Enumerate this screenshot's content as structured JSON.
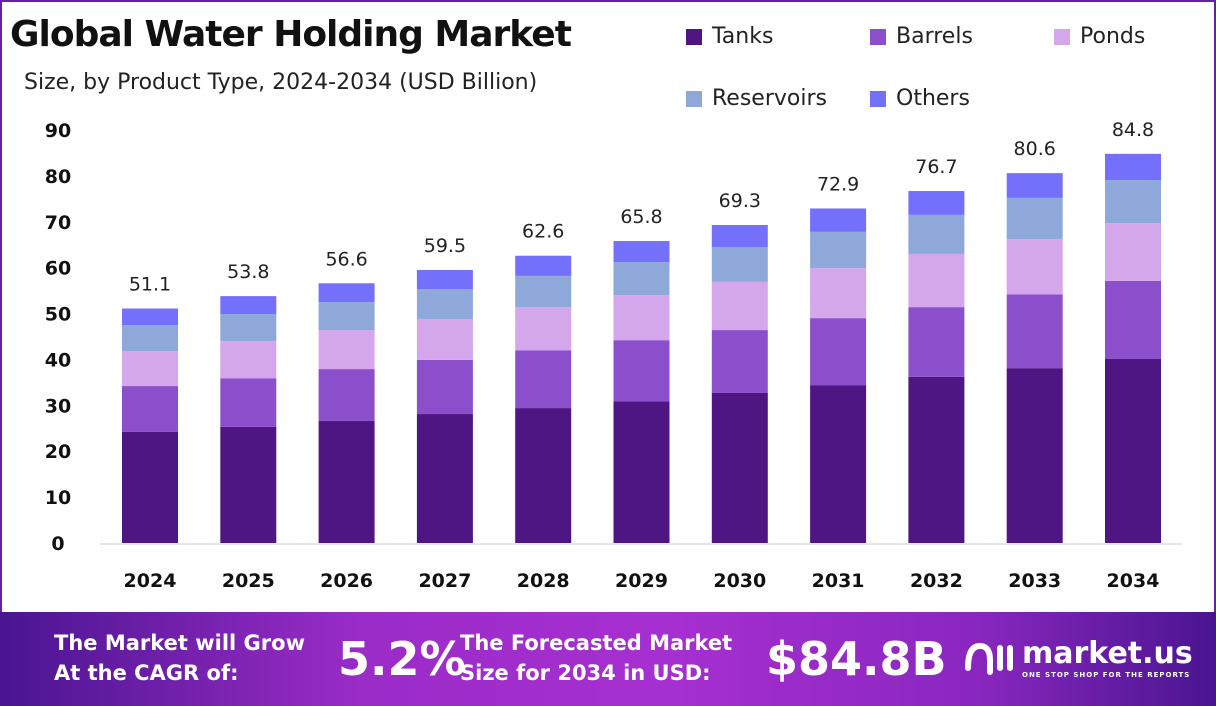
{
  "chart_data": {
    "type": "bar",
    "stacked": true,
    "title": "Global Water Holding Market",
    "subtitle": "Size, by Product Type, 2024-2034 (USD Billion)",
    "categories": [
      "2024",
      "2025",
      "2026",
      "2027",
      "2028",
      "2029",
      "2030",
      "2031",
      "2032",
      "2033",
      "2034"
    ],
    "series": [
      {
        "name": "Tanks",
        "color": "#4e1683",
        "values": [
          24.2,
          25.3,
          26.6,
          28.1,
          29.4,
          30.9,
          32.7,
          34.4,
          36.2,
          38.1,
          40.1
        ]
      },
      {
        "name": "Barrels",
        "color": "#8b4fcc",
        "values": [
          10.0,
          10.6,
          11.3,
          11.8,
          12.6,
          13.3,
          13.7,
          14.6,
          15.2,
          16.1,
          17.0
        ]
      },
      {
        "name": "Ponds",
        "color": "#d4a6ea",
        "values": [
          7.6,
          8.1,
          8.5,
          8.9,
          9.4,
          9.8,
          10.5,
          10.9,
          11.6,
          12.0,
          12.6
        ]
      },
      {
        "name": "Reservoirs",
        "color": "#8ea8da",
        "values": [
          5.7,
          5.9,
          6.1,
          6.5,
          6.8,
          7.2,
          7.6,
          7.9,
          8.5,
          9.0,
          9.4
        ]
      },
      {
        "name": "Others",
        "color": "#7470fc",
        "values": [
          3.6,
          3.9,
          4.1,
          4.2,
          4.4,
          4.6,
          4.8,
          5.1,
          5.2,
          5.4,
          5.7
        ]
      }
    ],
    "totals": [
      "51.1",
      "53.8",
      "56.6",
      "59.5",
      "62.6",
      "65.8",
      "69.3",
      "72.9",
      "76.7",
      "80.6",
      "84.8"
    ],
    "yticks": [
      "0",
      "10",
      "20",
      "30",
      "40",
      "50",
      "60",
      "70",
      "80",
      "90"
    ],
    "ylim": [
      0,
      90
    ],
    "grid": false,
    "legend_position": "top-right"
  },
  "banner": {
    "cagr_label_1": "The Market will Grow",
    "cagr_label_2": "At the CAGR of:",
    "cagr_value": "5.2%",
    "forecast_label_1": "The Forecasted Market",
    "forecast_label_2": "Size for 2034 in USD:",
    "forecast_value": "$84.8B",
    "logo_name": "market.us",
    "logo_tagline": "ONE STOP SHOP FOR THE REPORTS"
  }
}
